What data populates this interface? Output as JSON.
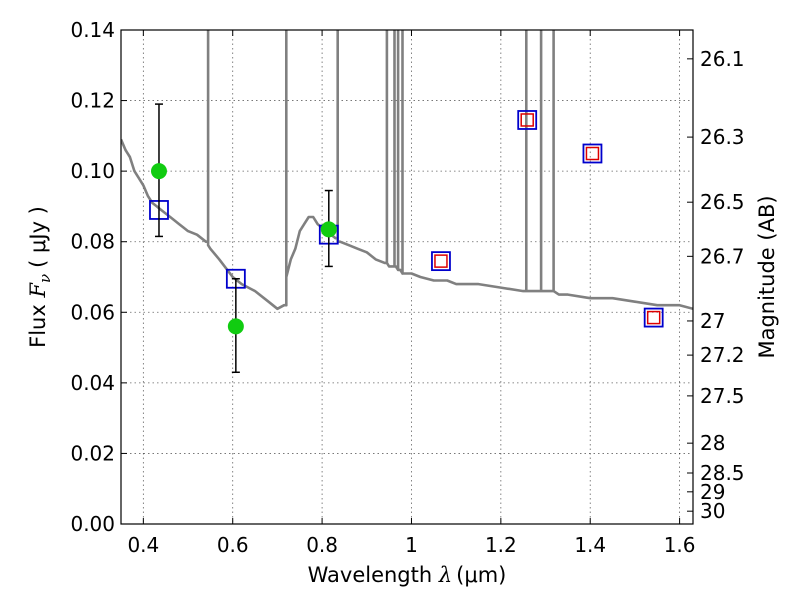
{
  "chart_data": {
    "type": "scatter",
    "title": "",
    "xlabel": "Wavelength  λ (μm)",
    "xlabel_parts": {
      "text": "Wavelength  ",
      "symbol": "λ",
      "unit": "(μm)"
    },
    "ylabel": "Flux  Fν  ( μJy )",
    "ylabel_parts": {
      "text": "Flux  ",
      "symbol": "F",
      "subscript": "ν",
      "unit": "( μJy )"
    },
    "y2label": "Magnitude (AB)",
    "xlim": [
      0.35,
      1.63
    ],
    "ylim": [
      0,
      0.14
    ],
    "grid": true,
    "x_ticks": [
      {
        "value": 0.4,
        "label": "0.4"
      },
      {
        "value": 0.6,
        "label": "0.6"
      },
      {
        "value": 0.8,
        "label": "0.8"
      },
      {
        "value": 1.0,
        "label": "1"
      },
      {
        "value": 1.2,
        "label": "1.2"
      },
      {
        "value": 1.4,
        "label": "1.4"
      },
      {
        "value": 1.6,
        "label": "1.6"
      }
    ],
    "y_ticks": [
      {
        "value": 0.0,
        "label": "0.00"
      },
      {
        "value": 0.02,
        "label": "0.02"
      },
      {
        "value": 0.04,
        "label": "0.04"
      },
      {
        "value": 0.06,
        "label": "0.06"
      },
      {
        "value": 0.08,
        "label": "0.08"
      },
      {
        "value": 0.1,
        "label": "0.10"
      },
      {
        "value": 0.12,
        "label": "0.12"
      },
      {
        "value": 0.14,
        "label": "0.14"
      }
    ],
    "y2_ticks": [
      {
        "value": 26.1,
        "label": "26.1"
      },
      {
        "value": 26.3,
        "label": "26.3"
      },
      {
        "value": 26.5,
        "label": "26.5"
      },
      {
        "value": 26.7,
        "label": "26.7"
      },
      {
        "value": 27.0,
        "label": "27"
      },
      {
        "value": 27.2,
        "label": "27.2"
      },
      {
        "value": 27.5,
        "label": "27.5"
      },
      {
        "value": 28.0,
        "label": "28"
      },
      {
        "value": 28.5,
        "label": "28.5"
      },
      {
        "value": 29.0,
        "label": "29"
      },
      {
        "value": 30.0,
        "label": "30"
      }
    ],
    "series": [
      {
        "kind": "model-spectrum",
        "color": "#808080",
        "x": [
          0.35,
          0.36,
          0.37,
          0.38,
          0.39,
          0.4,
          0.41,
          0.42,
          0.43,
          0.44,
          0.45,
          0.46,
          0.47,
          0.48,
          0.49,
          0.5,
          0.52,
          0.54,
          0.545,
          0.545,
          0.545,
          0.55,
          0.57,
          0.6,
          0.62,
          0.65,
          0.68,
          0.7,
          0.715,
          0.72,
          0.72,
          0.72,
          0.73,
          0.74,
          0.75,
          0.76,
          0.77,
          0.78,
          0.79,
          0.8,
          0.81,
          0.82,
          0.83,
          0.835,
          0.835,
          0.835,
          0.84,
          0.86,
          0.88,
          0.9,
          0.92,
          0.94,
          0.945,
          0.945,
          0.945,
          0.95,
          0.955,
          0.96,
          0.962,
          0.962,
          0.962,
          0.965,
          0.97,
          0.97,
          0.97,
          0.975,
          0.98,
          0.98,
          0.98,
          0.99,
          1.0,
          1.02,
          1.05,
          1.08,
          1.1,
          1.15,
          1.2,
          1.25,
          1.257,
          1.257,
          1.257,
          1.26,
          1.28,
          1.29,
          1.29,
          1.29,
          1.3,
          1.31,
          1.318,
          1.318,
          1.318,
          1.33,
          1.35,
          1.4,
          1.45,
          1.5,
          1.55,
          1.6,
          1.63
        ],
        "y": [
          0.109,
          0.106,
          0.104,
          0.1,
          0.098,
          0.096,
          0.093,
          0.091,
          0.09,
          0.089,
          0.088,
          0.087,
          0.086,
          0.085,
          0.084,
          0.083,
          0.082,
          0.08,
          0.08,
          0.14,
          0.079,
          0.078,
          0.075,
          0.07,
          0.068,
          0.066,
          0.063,
          0.061,
          0.062,
          0.062,
          0.14,
          0.07,
          0.075,
          0.078,
          0.083,
          0.085,
          0.087,
          0.087,
          0.085,
          0.084,
          0.083,
          0.082,
          0.081,
          0.081,
          0.14,
          0.08,
          0.08,
          0.079,
          0.078,
          0.077,
          0.075,
          0.074,
          0.074,
          0.14,
          0.074,
          0.073,
          0.073,
          0.073,
          0.073,
          0.14,
          0.073,
          0.073,
          0.072,
          0.14,
          0.072,
          0.072,
          0.071,
          0.14,
          0.071,
          0.071,
          0.071,
          0.07,
          0.069,
          0.069,
          0.068,
          0.068,
          0.067,
          0.066,
          0.066,
          0.14,
          0.066,
          0.066,
          0.066,
          0.066,
          0.14,
          0.066,
          0.066,
          0.066,
          0.066,
          0.14,
          0.066,
          0.065,
          0.065,
          0.064,
          0.064,
          0.063,
          0.062,
          0.062,
          0.061
        ]
      },
      {
        "kind": "model-photometry",
        "marker": "open-square",
        "color": "#0000cc",
        "x": [
          0.435,
          0.607,
          0.815,
          1.066,
          1.259,
          1.405,
          1.542
        ],
        "y": [
          0.089,
          0.0695,
          0.082,
          0.0745,
          0.1145,
          0.105,
          0.0585
        ]
      },
      {
        "kind": "model-photometry-inner",
        "marker": "open-square-small",
        "color": "#dd0000",
        "x": [
          1.066,
          1.259,
          1.405,
          1.542
        ],
        "y": [
          0.0745,
          0.1145,
          0.105,
          0.0585
        ]
      },
      {
        "kind": "observed",
        "marker": "filled-circle",
        "color": "#11cc11",
        "x": [
          0.435,
          0.607,
          0.815
        ],
        "y": [
          0.1,
          0.056,
          0.0835
        ],
        "yerr_low": [
          0.0815,
          0.043,
          0.073
        ],
        "yerr_high": [
          0.119,
          0.0695,
          0.0945
        ]
      }
    ]
  }
}
